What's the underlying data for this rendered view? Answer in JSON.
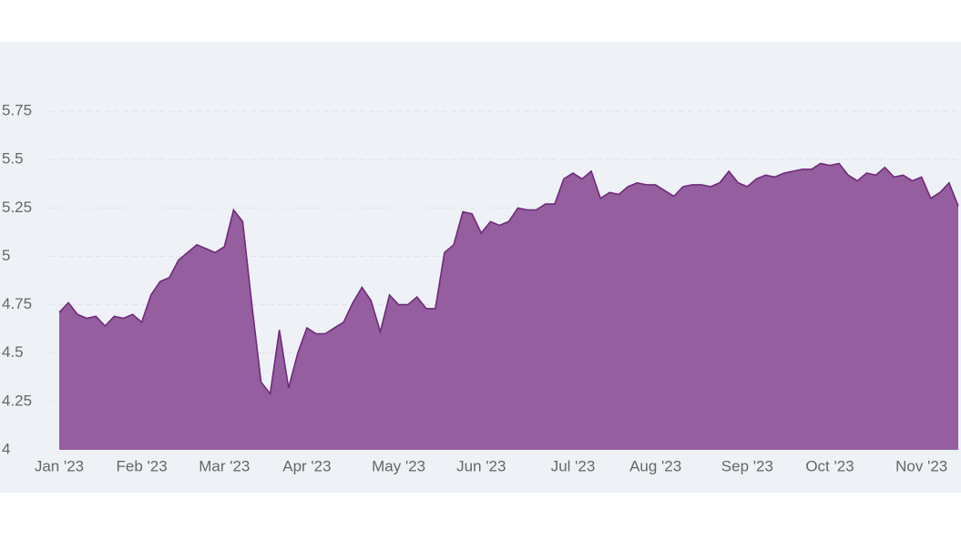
{
  "chart_data": {
    "type": "area",
    "categories": [
      "Jan '23",
      null,
      null,
      null,
      null,
      null,
      null,
      null,
      null,
      "Feb '23",
      null,
      null,
      null,
      null,
      null,
      null,
      null,
      null,
      "Mar '23",
      null,
      null,
      null,
      null,
      null,
      null,
      null,
      null,
      "Apr '23",
      null,
      null,
      null,
      null,
      null,
      null,
      null,
      null,
      null,
      "May '23",
      null,
      null,
      null,
      null,
      null,
      null,
      null,
      null,
      "Jun '23",
      null,
      null,
      null,
      null,
      null,
      null,
      null,
      null,
      null,
      "Jul '23",
      null,
      null,
      null,
      null,
      null,
      null,
      null,
      null,
      "Aug '23",
      null,
      null,
      null,
      null,
      null,
      null,
      null,
      null,
      null,
      "Sep '23",
      null,
      null,
      null,
      null,
      null,
      null,
      null,
      null,
      "Oct '23",
      null,
      null,
      null,
      null,
      null,
      null,
      null,
      null,
      null,
      "Nov '23",
      null,
      null,
      null,
      null
    ],
    "values": [
      4.71,
      4.76,
      4.7,
      4.68,
      4.69,
      4.64,
      4.69,
      4.68,
      4.7,
      4.66,
      4.8,
      4.87,
      4.89,
      4.98,
      5.02,
      5.06,
      5.04,
      5.02,
      5.05,
      5.24,
      5.18,
      4.75,
      4.35,
      4.29,
      4.62,
      4.32,
      4.5,
      4.63,
      4.6,
      4.6,
      4.63,
      4.66,
      4.76,
      4.84,
      4.77,
      4.61,
      4.8,
      4.75,
      4.75,
      4.79,
      4.73,
      4.73,
      5.02,
      5.06,
      5.23,
      5.22,
      5.12,
      5.18,
      5.16,
      5.18,
      5.25,
      5.24,
      5.24,
      5.27,
      5.27,
      5.4,
      5.43,
      5.4,
      5.44,
      5.3,
      5.33,
      5.32,
      5.36,
      5.38,
      5.37,
      5.37,
      5.34,
      5.31,
      5.36,
      5.37,
      5.37,
      5.36,
      5.38,
      5.44,
      5.38,
      5.36,
      5.4,
      5.42,
      5.41,
      5.43,
      5.44,
      5.45,
      5.45,
      5.48,
      5.47,
      5.48,
      5.42,
      5.39,
      5.43,
      5.42,
      5.46,
      5.41,
      5.42,
      5.39,
      5.41,
      5.3,
      5.33,
      5.38,
      5.26
    ],
    "color": "#955e9f",
    "line_color": "#6f2a7b",
    "ylim": [
      4,
      6
    ],
    "yticks": [
      4,
      4.25,
      4.5,
      4.75,
      5,
      5.25,
      5.5,
      5.75
    ],
    "grid": true
  }
}
